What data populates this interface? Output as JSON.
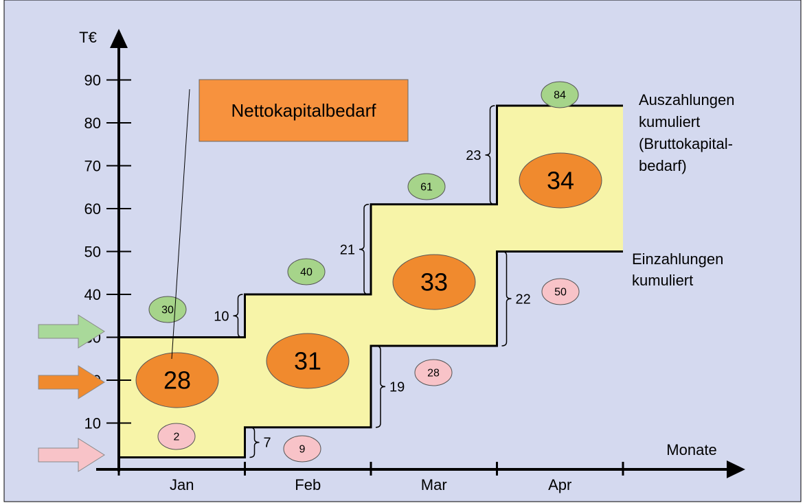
{
  "chart_data": {
    "type": "step-area",
    "y_unit": "T€",
    "x_label": "Monate",
    "categories": [
      "Jan",
      "Feb",
      "Mar",
      "Apr"
    ],
    "y_ticks": [
      10,
      20,
      30,
      40,
      50,
      60,
      70,
      80,
      90
    ],
    "ylim": [
      0,
      95
    ],
    "series": [
      {
        "name": "Auszahlungen kumuliert (Bruttokapital-bedarf)",
        "values": [
          30,
          40,
          61,
          84
        ],
        "period_changes": [
          10,
          21,
          23
        ],
        "bubble_color": "#a6d48a",
        "line_color": "#000000"
      },
      {
        "name": "Einzahlungen kumuliert",
        "values": [
          2,
          9,
          28,
          50
        ],
        "period_changes": [
          7,
          19,
          22
        ],
        "bubble_color": "#f8c3c8",
        "line_color": "#000000"
      }
    ],
    "net_requirement": [
      28,
      31,
      33,
      34
    ],
    "net_bubble_color": "#f08a2e",
    "area_color": "#f7f4a8",
    "callout": "Nettokapitalbedarf",
    "callout_color": "#f7923e",
    "background_color": "#d4d9ef",
    "side_arrows": [
      {
        "color": "#a9d99a",
        "points_to": "Auszahlungen"
      },
      {
        "color": "#f08a2e",
        "points_to": "Nettokapitalbedarf"
      },
      {
        "color": "#f8c3c8",
        "points_to": "Einzahlungen"
      }
    ],
    "legend_position": "right"
  }
}
